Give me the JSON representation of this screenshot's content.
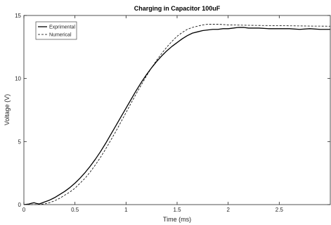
{
  "chart_data": {
    "type": "line",
    "title": "Charging in Capacitor 100uF",
    "xlabel": "Time (ms)",
    "ylabel": "Voltage (V)",
    "xlim": [
      0,
      3
    ],
    "ylim": [
      0,
      15
    ],
    "xticks": [
      0,
      0.5,
      1,
      1.5,
      2,
      2.5
    ],
    "xtick_labels": [
      "0",
      "0.5",
      "1",
      "1.5",
      "2",
      "2.5"
    ],
    "yticks": [
      0,
      5,
      10,
      15
    ],
    "ytick_labels": [
      "0",
      "5",
      "10",
      "15"
    ],
    "grid": false,
    "legend_position": "top-left",
    "series": [
      {
        "name": "Exprimental",
        "line_style": "solid",
        "color": "#000000",
        "x": [
          0,
          0.05,
          0.08,
          0.1,
          0.12,
          0.15,
          0.2,
          0.25,
          0.3,
          0.35,
          0.4,
          0.45,
          0.5,
          0.55,
          0.6,
          0.65,
          0.7,
          0.75,
          0.8,
          0.85,
          0.9,
          0.95,
          1.0,
          1.05,
          1.1,
          1.15,
          1.2,
          1.25,
          1.3,
          1.35,
          1.4,
          1.45,
          1.5,
          1.55,
          1.6,
          1.65,
          1.7,
          1.75,
          1.8,
          1.85,
          1.9,
          1.95,
          2.0,
          2.05,
          2.1,
          2.15,
          2.2,
          2.3,
          2.4,
          2.5,
          2.6,
          2.7,
          2.8,
          2.9,
          3.0
        ],
        "y": [
          0,
          0.05,
          0.12,
          0.15,
          0.1,
          0.05,
          0.2,
          0.35,
          0.55,
          0.8,
          1.05,
          1.35,
          1.7,
          2.1,
          2.55,
          3.05,
          3.6,
          4.2,
          4.85,
          5.55,
          6.25,
          6.95,
          7.65,
          8.35,
          9.05,
          9.7,
          10.3,
          10.85,
          11.35,
          11.8,
          12.2,
          12.55,
          12.85,
          13.15,
          13.4,
          13.6,
          13.7,
          13.8,
          13.85,
          13.9,
          13.9,
          13.95,
          13.95,
          14.0,
          14.05,
          14.05,
          14.0,
          14.0,
          13.95,
          13.95,
          13.95,
          13.9,
          13.95,
          13.9,
          13.9
        ]
      },
      {
        "name": "Numerical",
        "line_style": "dashed",
        "color": "#000000",
        "x": [
          0,
          0.1,
          0.2,
          0.25,
          0.3,
          0.35,
          0.4,
          0.45,
          0.5,
          0.55,
          0.6,
          0.65,
          0.7,
          0.75,
          0.8,
          0.85,
          0.9,
          0.95,
          1.0,
          1.05,
          1.1,
          1.15,
          1.2,
          1.25,
          1.3,
          1.35,
          1.4,
          1.45,
          1.5,
          1.55,
          1.6,
          1.65,
          1.7,
          1.75,
          1.8,
          1.85,
          1.9,
          1.95,
          2.0,
          2.2,
          2.4,
          2.6,
          2.8,
          3.0
        ],
        "y": [
          0,
          0,
          0.05,
          0.15,
          0.3,
          0.5,
          0.75,
          1.0,
          1.3,
          1.7,
          2.1,
          2.6,
          3.15,
          3.75,
          4.4,
          5.1,
          5.8,
          6.55,
          7.3,
          8.05,
          8.8,
          9.5,
          10.2,
          10.85,
          11.45,
          12.0,
          12.5,
          12.95,
          13.35,
          13.65,
          13.9,
          14.05,
          14.15,
          14.25,
          14.3,
          14.3,
          14.3,
          14.28,
          14.25,
          14.22,
          14.2,
          14.18,
          14.16,
          14.15
        ]
      }
    ]
  }
}
